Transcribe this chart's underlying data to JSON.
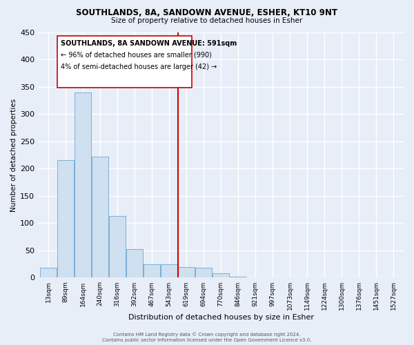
{
  "title": "SOUTHLANDS, 8A, SANDOWN AVENUE, ESHER, KT10 9NT",
  "subtitle": "Size of property relative to detached houses in Esher",
  "xlabel": "Distribution of detached houses by size in Esher",
  "ylabel": "Number of detached properties",
  "bar_color": "#cfe0f0",
  "bar_edge_color": "#7aafd4",
  "background_color": "#e8eef8",
  "grid_color": "#ffffff",
  "categories": [
    "13sqm",
    "89sqm",
    "164sqm",
    "240sqm",
    "316sqm",
    "392sqm",
    "467sqm",
    "543sqm",
    "619sqm",
    "694sqm",
    "770sqm",
    "846sqm",
    "921sqm",
    "997sqm",
    "1073sqm",
    "1149sqm",
    "1224sqm",
    "1300sqm",
    "1376sqm",
    "1451sqm",
    "1527sqm"
  ],
  "values": [
    18,
    215,
    340,
    222,
    113,
    53,
    25,
    25,
    20,
    18,
    8,
    2,
    1,
    0,
    0,
    0,
    1,
    0,
    1,
    0,
    1
  ],
  "ylim": [
    0,
    450
  ],
  "yticks": [
    0,
    50,
    100,
    150,
    200,
    250,
    300,
    350,
    400,
    450
  ],
  "vline_index": 8,
  "vline_color": "#cc0000",
  "annotation_title": "SOUTHLANDS, 8A SANDOWN AVENUE: 591sqm",
  "annotation_line1": "← 96% of detached houses are smaller (990)",
  "annotation_line2": "4% of semi-detached houses are larger (42) →",
  "footnote1": "Contains HM Land Registry data © Crown copyright and database right 2024.",
  "footnote2": "Contains public sector information licensed under the Open Government Licence v3.0.",
  "fig_width": 6.0,
  "fig_height": 5.0,
  "dpi": 100
}
